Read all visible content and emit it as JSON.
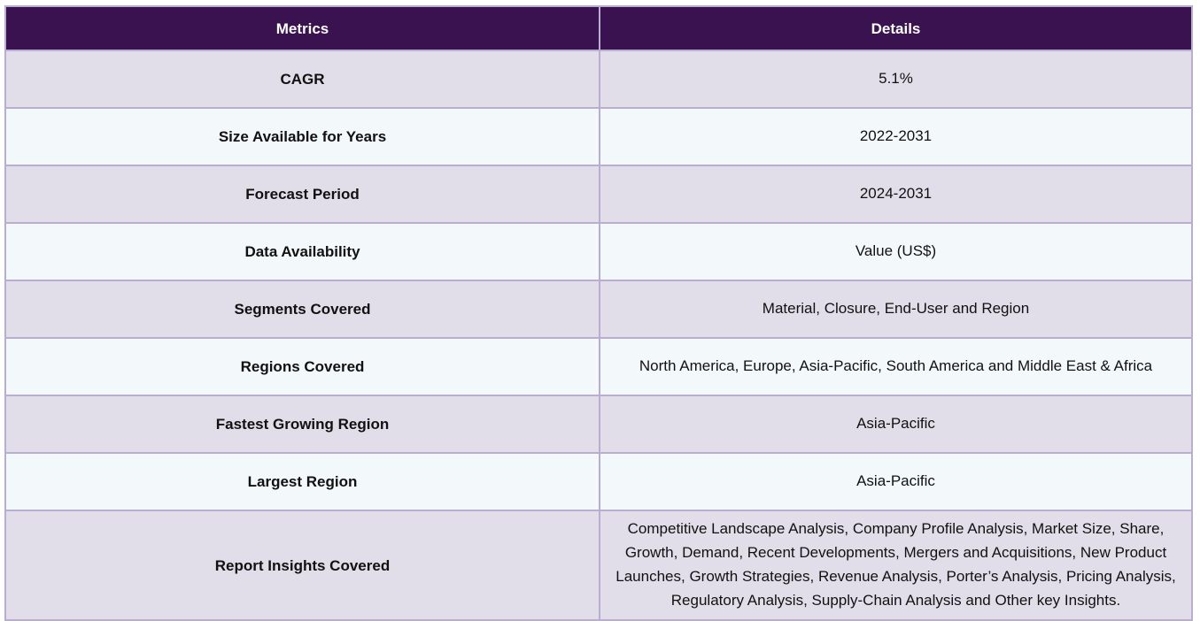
{
  "table": {
    "header": [
      "Metrics",
      "Details"
    ],
    "rows": [
      [
        "CAGR",
        "5.1%"
      ],
      [
        "Size Available for Years",
        "2022-2031"
      ],
      [
        "Forecast Period",
        "2024-2031"
      ],
      [
        "Data Availability",
        "Value (US$)"
      ],
      [
        "Segments Covered",
        "Material, Closure, End-User and Region"
      ],
      [
        "Regions Covered",
        "North America, Europe, Asia-Pacific, South America and Middle East & Africa"
      ],
      [
        "Fastest Growing Region",
        "Asia-Pacific"
      ],
      [
        "Largest Region",
        "Asia-Pacific"
      ],
      [
        "Report Insights Covered",
        "Competitive Landscape Analysis, Company Profile Analysis, Market Size, Share, Growth, Demand, Recent Developments, Mergers and Acquisitions, New Product Launches, Growth Strategies, Revenue Analysis, Porter’s Analysis, Pricing Analysis, Regulatory Analysis, Supply-Chain Analysis and Other key Insights."
      ]
    ]
  }
}
